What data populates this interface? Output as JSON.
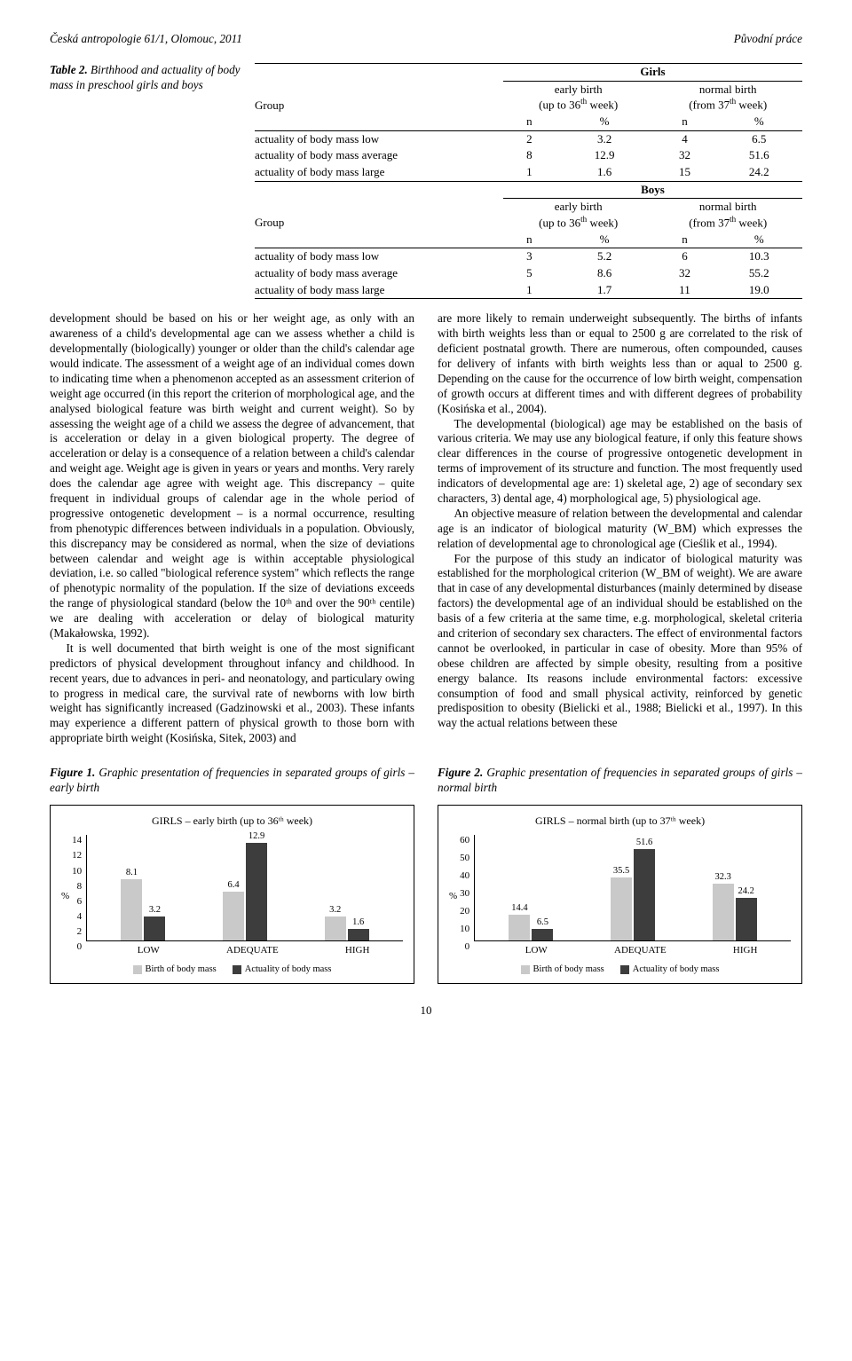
{
  "header": {
    "left": "Česká antropologie 61/1, Olomouc, 2011",
    "right": "Původní práce"
  },
  "table_caption": {
    "label": "Table 2.",
    "text": " Birthhood and actuality of body mass in preschool girls and boys"
  },
  "table": {
    "group_label": "Group",
    "girls_label": "Girls",
    "boys_label": "Boys",
    "early_label": "early birth",
    "early_sub": "(up to 36",
    "early_sub2": " week)",
    "normal_label": "normal birth",
    "normal_sub": "(from 37",
    "normal_sub2": " week)",
    "n": "n",
    "pct": "%",
    "girls_rows": [
      {
        "label": "actuality of body mass low",
        "n1": "2",
        "p1": "3.2",
        "n2": "4",
        "p2": "6.5"
      },
      {
        "label": "actuality of body mass average",
        "n1": "8",
        "p1": "12.9",
        "n2": "32",
        "p2": "51.6"
      },
      {
        "label": "actuality of body mass large",
        "n1": "1",
        "p1": "1.6",
        "n2": "15",
        "p2": "24.2"
      }
    ],
    "boys_rows": [
      {
        "label": "actuality of body mass low",
        "n1": "3",
        "p1": "5.2",
        "n2": "6",
        "p2": "10.3"
      },
      {
        "label": "actuality of body mass average",
        "n1": "5",
        "p1": "8.6",
        "n2": "32",
        "p2": "55.2"
      },
      {
        "label": "actuality of body mass large",
        "n1": "1",
        "p1": "1.7",
        "n2": "11",
        "p2": "19.0"
      }
    ]
  },
  "body_left_p1": "development should be based on his or her weight age, as only with an awareness of a child's developmental age can we assess whether a child is developmentally (biologically) younger or older than the child's calendar age would indicate. The assessment of a weight age of an individual comes down to indicating time when a phenomenon accepted as an assessment criterion of weight age occurred (in this report the criterion of morphological age, and the analysed biological feature was birth weight and current weight). So by assessing the weight age of a child we assess the degree of advancement, that is acceleration or delay in a given biological property. The degree of acceleration or delay is a consequence of a relation between a child's calendar and weight age. Weight age is given in years or years and months. Very rarely does the calendar age agree with weight age. This discrepancy – quite frequent in individual groups of calendar age in the whole period of progressive ontogenetic development – is a normal occurrence, resulting from phenotypic differences between individuals in a population. Obviously, this discrepancy may be considered as normal, when the size of deviations between calendar and weight age is within acceptable physiological deviation, i.e. so called \"biological reference system\" which reflects the range of phenotypic normality of the population. If the size of deviations exceeds the range of physiological standard (below the 10ᵗʰ and over the 90ᵗʰ centile) we are dealing with acceleration or delay of biological maturity (Makałowska, 1992).",
  "body_left_p2": "It is well documented that birth weight is one of the most significant predictors of physical development throughout infancy and childhood. In recent years, due to advances in peri- and neonatology, and particulary owing to progress in medical care, the survival rate of newborns with low birth weight has significantly increased (Gadzinowski et al., 2003). These infants may experience a different pattern of physical growth to those born with appropriate birth weight (Kosińska, Sitek, 2003) and",
  "body_right_p1": "are more likely to remain underweight subsequently. The births of infants with birth weights less than or equal to 2500 g are correlated to the risk of deficient postnatal growth. There are numerous, often compounded, causes for delivery of infants with birth weights less than or aqual to 2500 g. Depending on the cause for the occurrence of low birth weight, compensation of growth occurs at different times and with different degrees of probability (Kosińska et al., 2004).",
  "body_right_p2": "The developmental (biological) age may be established on the basis of various criteria. We may use any biological feature, if only this feature shows clear differences in the course of progressive ontogenetic development in terms of improvement of its structure and function. The most frequently used indicators of developmental age are: 1) skeletal age, 2) age of secondary sex characters, 3) dental age, 4) morphological age, 5) physiological age.",
  "body_right_p3": "An objective measure of relation between the developmental and calendar age is an indicator of biological maturity (W_BM) which expresses the relation of developmental age to chronological age (Cieślik et al., 1994).",
  "body_right_p4": "For the purpose of this study an indicator of biological maturity was established for the morphological criterion (W_BM of weight). We are aware that in case of any developmental disturbances (mainly determined by disease factors) the developmental age of an individual should be established on the basis of a few criteria at the same time, e.g. morphological, skeletal criteria and criterion of secondary sex characters. The effect of environmental factors cannot be overlooked, in particular in case of obesity. More than 95% of obese children are affected by simple obesity, resulting from a positive energy balance. Its reasons include environmental factors: excessive consumption of food and small physical activity, reinforced by genetic predisposition to obesity (Bielicki et al., 1988; Bielicki et al., 1997). In this way the actual relations between these",
  "fig1": {
    "caption_label": "Figure 1.",
    "caption_text": " Graphic presentation of frequencies in separated groups of girls – early birth",
    "title": "GIRLS – early birth (up to 36ᵗʰ week)",
    "y_label": "%",
    "y_max": 14,
    "y_step": 2,
    "y_ticks": [
      "14",
      "12",
      "10",
      "8",
      "6",
      "4",
      "2",
      "0"
    ],
    "categories": [
      "LOW",
      "ADEQUATE",
      "HIGH"
    ],
    "series": [
      {
        "name": "Birth of body mass",
        "color": "#c9c9c9",
        "values": [
          8.1,
          6.4,
          3.2
        ],
        "labels": [
          "8.1",
          "6.4",
          "3.2"
        ]
      },
      {
        "name": "Actuality of body mass",
        "color": "#3d3d3d",
        "values": [
          3.2,
          12.9,
          1.6
        ],
        "labels": [
          "3.2",
          "12.9",
          "1.6"
        ]
      }
    ]
  },
  "fig2": {
    "caption_label": "Figure 2.",
    "caption_text": " Graphic presentation of frequencies in separated groups of girls – normal birth",
    "title": "GIRLS – normal birth (up to 37ᵗʰ week)",
    "y_label": "%",
    "y_max": 60,
    "y_step": 10,
    "y_ticks": [
      "60",
      "50",
      "40",
      "30",
      "20",
      "10",
      "0"
    ],
    "categories": [
      "LOW",
      "ADEQUATE",
      "HIGH"
    ],
    "series": [
      {
        "name": "Birth of body mass",
        "color": "#c9c9c9",
        "values": [
          14.4,
          35.5,
          32.3
        ],
        "labels": [
          "14.4",
          "35.5",
          "32.3"
        ]
      },
      {
        "name": "Actuality of body mass",
        "color": "#3d3d3d",
        "values": [
          6.5,
          51.6,
          24.2
        ],
        "labels": [
          "6.5",
          "51.6",
          "24.2"
        ]
      }
    ]
  },
  "legend": {
    "a": "Birth of body mass",
    "b": "Actuality of body mass"
  },
  "page_number": "10"
}
